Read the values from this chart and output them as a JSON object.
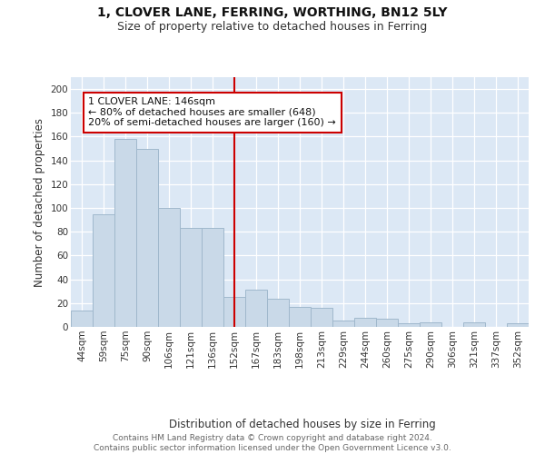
{
  "title": "1, CLOVER LANE, FERRING, WORTHING, BN12 5LY",
  "subtitle": "Size of property relative to detached houses in Ferring",
  "xlabel": "Distribution of detached houses by size in Ferring",
  "ylabel": "Number of detached properties",
  "categories": [
    "44sqm",
    "59sqm",
    "75sqm",
    "90sqm",
    "106sqm",
    "121sqm",
    "136sqm",
    "152sqm",
    "167sqm",
    "183sqm",
    "198sqm",
    "213sqm",
    "229sqm",
    "244sqm",
    "260sqm",
    "275sqm",
    "290sqm",
    "306sqm",
    "321sqm",
    "337sqm",
    "352sqm"
  ],
  "values": [
    14,
    95,
    158,
    150,
    100,
    83,
    83,
    25,
    31,
    24,
    17,
    16,
    5,
    8,
    7,
    3,
    4,
    0,
    4,
    0,
    3
  ],
  "bar_color": "#c9d9e8",
  "bar_edge_color": "#a0b8cc",
  "vline_x": 7,
  "vline_color": "#cc0000",
  "annotation_text": "1 CLOVER LANE: 146sqm\n← 80% of detached houses are smaller (648)\n20% of semi-detached houses are larger (160) →",
  "annotation_box_color": "#ffffff",
  "annotation_box_edge": "#cc0000",
  "ylim": [
    0,
    210
  ],
  "yticks": [
    0,
    20,
    40,
    60,
    80,
    100,
    120,
    140,
    160,
    180,
    200
  ],
  "background_color": "#dce8f5",
  "footer_text": "Contains HM Land Registry data © Crown copyright and database right 2024.\nContains public sector information licensed under the Open Government Licence v3.0.",
  "title_fontsize": 10,
  "subtitle_fontsize": 9,
  "xlabel_fontsize": 8.5,
  "ylabel_fontsize": 8.5,
  "tick_fontsize": 7.5,
  "annotation_fontsize": 8,
  "footer_fontsize": 6.5
}
